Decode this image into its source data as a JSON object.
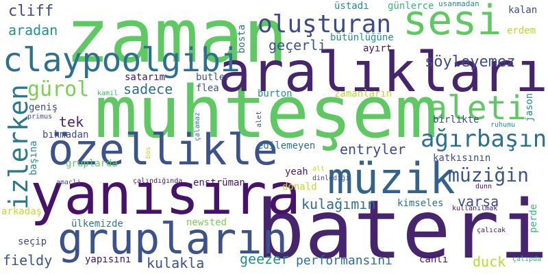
{
  "palette": {
    "background": "#ffffff",
    "dark_purple": "#440154",
    "indigo": "#3b528b",
    "blue": "#2c6f8e",
    "teal": "#21908d",
    "green": "#35b779",
    "light_green": "#5ec962",
    "yellow": "#c8d82a"
  },
  "words": [
    {
      "text": "zaman",
      "color": "#5ec962"
    },
    {
      "text": "muhteşem",
      "color": "#5ec962"
    },
    {
      "text": "bateri",
      "color": "#46246e"
    },
    {
      "text": "aralıkları",
      "color": "#46246e"
    },
    {
      "text": "yanısıra",
      "color": "#46126a"
    },
    {
      "text": "özellikle",
      "color": "#3b528b"
    },
    {
      "text": "grupların",
      "color": "#3b528b"
    },
    {
      "text": "müzik",
      "color": "#33638d"
    },
    {
      "text": "sesi",
      "color": "#5ec962"
    },
    {
      "text": "claypoolgibi",
      "color": "#2c6f8e"
    },
    {
      "text": "izlerken",
      "color": "#2a788e"
    },
    {
      "text": "oluşturan",
      "color": "#3e4a89"
    },
    {
      "text": "aleti",
      "color": "#5ec962"
    },
    {
      "text": "ağırbaşın",
      "color": "#2c6f8e"
    },
    {
      "text": "gürol",
      "color": "#7ad151"
    },
    {
      "text": "müziğin",
      "color": "#3b528b"
    },
    {
      "text": "söyleyemez",
      "color": "#3e4a89"
    },
    {
      "text": "cliff",
      "color": "#3e4a89"
    },
    {
      "text": "aradan",
      "color": "#21908d"
    },
    {
      "text": "geçerli",
      "color": "#3b528b"
    },
    {
      "text": "sadece",
      "color": "#2c6f8e"
    },
    {
      "text": "tek",
      "color": "#482173"
    },
    {
      "text": "entryler",
      "color": "#3e4a89"
    },
    {
      "text": "kulağımın",
      "color": "#2c6f8e"
    },
    {
      "text": "varsa",
      "color": "#3e4a89"
    },
    {
      "text": "kulakla",
      "color": "#3b528b"
    },
    {
      "text": "fieldy",
      "color": "#3b528b"
    },
    {
      "text": "geezer",
      "color": "#21908d"
    },
    {
      "text": "performansını",
      "color": "#2c6f8e"
    },
    {
      "text": "duck",
      "color": "#b5de2b"
    },
    {
      "text": "üstadı",
      "color": "#21908d"
    },
    {
      "text": "günlerce",
      "color": "#35b779"
    },
    {
      "text": "usanmadan",
      "color": "#21908d"
    },
    {
      "text": "kalan",
      "color": "#3e4a89"
    },
    {
      "text": "bütünlüğüne",
      "color": "#21908d"
    },
    {
      "text": "ayırt",
      "color": "#46126a"
    },
    {
      "text": "erdem",
      "color": "#b5de2b"
    },
    {
      "text": "bosta",
      "color": "#2a788e"
    },
    {
      "text": "butler",
      "color": "#3b528b"
    },
    {
      "text": "flea",
      "color": "#3b528b"
    },
    {
      "text": "satarım",
      "color": "#46126a"
    },
    {
      "text": "burton",
      "color": "#21908d"
    },
    {
      "text": "zamanların",
      "color": "#b5de2b"
    },
    {
      "text": "jason",
      "color": "#21908d"
    },
    {
      "text": "kamil",
      "color": "#35b779"
    },
    {
      "text": "genis",
      "text_full": "geniş",
      "color": "#3e4a89"
    },
    {
      "text": "primus",
      "color": "#3e4a89"
    },
    {
      "text": "çalamaz",
      "color": "#2a788e"
    },
    {
      "text": "alet",
      "color": "#3e4a89"
    },
    {
      "text": "birlikte",
      "color": "#3e4a89"
    },
    {
      "text": "ruhumu",
      "color": "#21908d"
    },
    {
      "text": "bıkmadan",
      "color": "#3e4a89"
    },
    {
      "text": "gruplarda",
      "color": "#5ec962"
    },
    {
      "text": "başına",
      "color": "#21908d"
    },
    {
      "text": "bas",
      "color": "#c8d82a"
    },
    {
      "text": "edilemeyen",
      "color": "#2c6f8e"
    },
    {
      "text": "katkısının",
      "color": "#3e4a89"
    },
    {
      "text": "yeah",
      "color": "#482173"
    },
    {
      "text": "alt",
      "color": "#c8d82a"
    },
    {
      "text": "dinlediği",
      "color": "#3e4a89"
    },
    {
      "text": "amacli",
      "color": "#3e4a89"
    },
    {
      "text": "çalındığında",
      "color": "#46126a"
    },
    {
      "text": "enstrüman",
      "color": "#46126a"
    },
    {
      "text": "donald",
      "color": "#c8d82a"
    },
    {
      "text": "dunn",
      "color": "#46126a"
    },
    {
      "text": "arkadaş",
      "color": "#c8d82a"
    },
    {
      "text": "ülkemizde",
      "color": "#2a788e"
    },
    {
      "text": "newsted",
      "color": "#7ad151"
    },
    {
      "text": "kimseles",
      "color": "#2c6f8e"
    },
    {
      "text": "kullanılmak",
      "color": "#46126a"
    },
    {
      "text": "perde",
      "color": "#35b779"
    },
    {
      "text": "seçip",
      "color": "#3e4a89"
    },
    {
      "text": "çalıcak",
      "color": "#46126a"
    },
    {
      "text": "yapısını",
      "color": "#46126a"
    },
    {
      "text": "canlı",
      "color": "#46126a"
    },
    {
      "text": "çalıpda",
      "color": "#35b779"
    }
  ]
}
